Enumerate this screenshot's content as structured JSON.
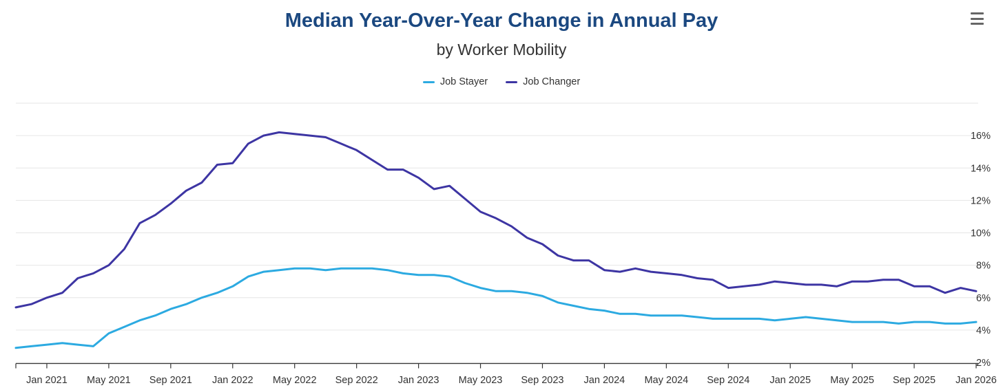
{
  "header": {
    "title": "Median Year-Over-Year Change in Annual Pay",
    "subtitle": "by Worker Mobility"
  },
  "icons": {
    "context_menu": "hamburger-menu-icon"
  },
  "legend": {
    "items": [
      {
        "label": "Job Stayer",
        "color": "#2CAAE1"
      },
      {
        "label": "Job Changer",
        "color": "#3D35A3"
      }
    ]
  },
  "colors": {
    "title": "#1B4880",
    "text": "#333333",
    "gridline": "#E6E6E6",
    "axis_line": "#333333",
    "job_stayer": "#2CAAE1",
    "job_changer": "#3D35A3"
  },
  "chart_data": {
    "type": "line",
    "title": "Median Year-Over-Year Change in Annual Pay",
    "subtitle": "by Worker Mobility",
    "xlabel": "",
    "ylabel": "",
    "y_axis_side": "right",
    "legend_position": "top",
    "grid": true,
    "ylim": [
      2,
      18
    ],
    "gridline_step": 2,
    "y_tick_labels": [
      "2%",
      "4%",
      "6%",
      "8%",
      "10%",
      "12%",
      "14%",
      "16%"
    ],
    "x": [
      "Nov 2020",
      "Dec 2020",
      "Jan 2021",
      "Feb 2021",
      "Mar 2021",
      "Apr 2021",
      "May 2021",
      "Jun 2021",
      "Jul 2021",
      "Aug 2021",
      "Sep 2021",
      "Oct 2021",
      "Nov 2021",
      "Dec 2021",
      "Jan 2022",
      "Feb 2022",
      "Mar 2022",
      "Apr 2022",
      "May 2022",
      "Jun 2022",
      "Jul 2022",
      "Aug 2022",
      "Sep 2022",
      "Oct 2022",
      "Nov 2022",
      "Dec 2022",
      "Jan 2023",
      "Feb 2023",
      "Mar 2023",
      "Apr 2023",
      "May 2023",
      "Jun 2023",
      "Jul 2023",
      "Aug 2023",
      "Sep 2023",
      "Oct 2023",
      "Nov 2023",
      "Dec 2023",
      "Jan 2024",
      "Feb 2024",
      "Mar 2024",
      "Apr 2024",
      "May 2024",
      "Jun 2024",
      "Jul 2024",
      "Aug 2024",
      "Sep 2024",
      "Oct 2024",
      "Nov 2024",
      "Dec 2024",
      "Jan 2025",
      "Feb 2025",
      "Mar 2025",
      "Apr 2025",
      "May 2025",
      "Jun 2025",
      "Jul 2025",
      "Aug 2025",
      "Sep 2025",
      "Oct 2025",
      "Nov 2025",
      "Dec 2025",
      "Jan 2026"
    ],
    "x_tick_labels": [
      "Jan 2021",
      "May 2021",
      "Sep 2021",
      "Jan 2022",
      "May 2022",
      "Sep 2022",
      "Jan 2023",
      "May 2023",
      "Sep 2023",
      "Jan 2024",
      "May 2024",
      "Sep 2024",
      "Jan 2025",
      "May 2025",
      "Sep 2025",
      "Jan 2026"
    ],
    "series": [
      {
        "name": "Job Stayer",
        "color": "#2CAAE1",
        "values": [
          2.9,
          3.0,
          3.1,
          3.2,
          3.1,
          3.0,
          3.8,
          4.2,
          4.6,
          4.9,
          5.3,
          5.6,
          6.0,
          6.3,
          6.7,
          7.3,
          7.6,
          7.7,
          7.8,
          7.8,
          7.7,
          7.8,
          7.8,
          7.8,
          7.7,
          7.5,
          7.4,
          7.4,
          7.3,
          6.9,
          6.6,
          6.4,
          6.4,
          6.3,
          6.1,
          5.7,
          5.5,
          5.3,
          5.2,
          5.0,
          5.0,
          4.9,
          4.9,
          4.9,
          4.8,
          4.7,
          4.7,
          4.7,
          4.7,
          4.6,
          4.7,
          4.8,
          4.7,
          4.6,
          4.5,
          4.5,
          4.5,
          4.4,
          4.5,
          4.5,
          4.4,
          4.4,
          4.5
        ]
      },
      {
        "name": "Job Changer",
        "color": "#3D35A3",
        "values": [
          5.4,
          5.6,
          6.0,
          6.3,
          7.2,
          7.5,
          8.0,
          9.0,
          10.6,
          11.1,
          11.8,
          12.6,
          13.1,
          14.2,
          14.3,
          15.5,
          16.0,
          16.2,
          16.1,
          16.0,
          15.9,
          15.5,
          15.1,
          14.5,
          13.9,
          13.9,
          13.4,
          12.7,
          12.9,
          12.1,
          11.3,
          10.9,
          10.4,
          9.7,
          9.3,
          8.6,
          8.3,
          8.3,
          7.7,
          7.6,
          7.8,
          7.6,
          7.5,
          7.4,
          7.2,
          7.1,
          6.6,
          6.7,
          6.8,
          7.0,
          6.9,
          6.8,
          6.8,
          6.7,
          7.0,
          7.0,
          7.1,
          7.1,
          6.7,
          6.7,
          6.3,
          6.6,
          6.4
        ]
      }
    ]
  }
}
